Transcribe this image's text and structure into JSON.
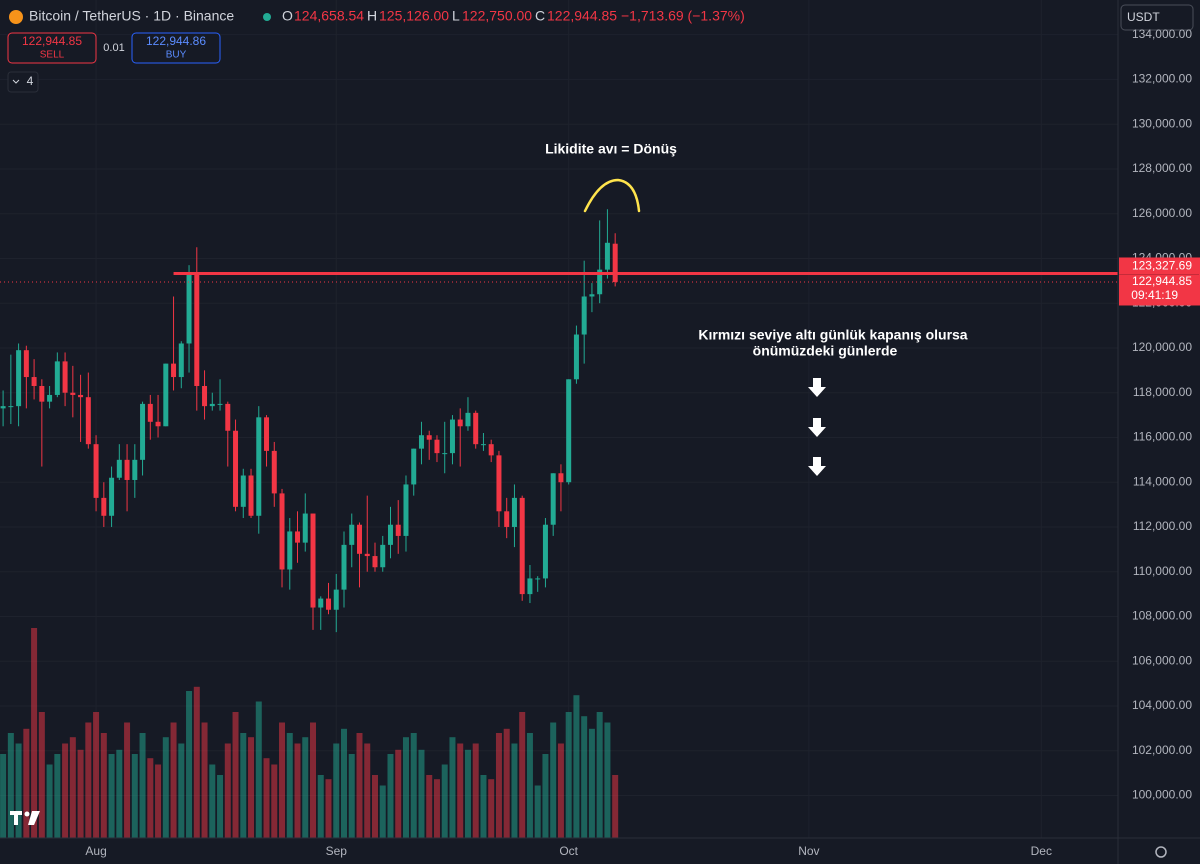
{
  "header": {
    "symbol": "Bitcoin / TetherUS · 1D · Binance",
    "ohlc": [
      {
        "label": "O",
        "value": "124,658.54"
      },
      {
        "label": "H",
        "value": "125,126.00"
      },
      {
        "label": "L",
        "value": "122,750.00"
      },
      {
        "label": "C",
        "value": "122,944.85"
      }
    ],
    "change": "−1,713.69 (−1.37%)"
  },
  "trade": {
    "sell_price": "122,944.85",
    "sell_label": "SELL",
    "spread": "0.01",
    "buy_price": "122,944.86",
    "buy_label": "BUY"
  },
  "indicators_count": 4,
  "currency": "USDT",
  "chart_data": {
    "type": "candlestick",
    "up_color": "#22ab94",
    "down_color": "#f23645",
    "xlim": [
      -0.4,
      143.9
    ],
    "xticks": [
      {
        "value": 12,
        "label": "Aug"
      },
      {
        "value": 43,
        "label": "Sep"
      },
      {
        "value": 73,
        "label": "Oct"
      },
      {
        "value": 104,
        "label": "Nov"
      },
      {
        "value": 134,
        "label": "Dec"
      }
    ],
    "ylim": [
      98100,
      135550
    ],
    "yticks": [
      {
        "value": 100000,
        "label": "100,000.00"
      },
      {
        "value": 102000,
        "label": "102,000.00"
      },
      {
        "value": 104000,
        "label": "104,000.00"
      },
      {
        "value": 106000,
        "label": "106,000.00"
      },
      {
        "value": 108000,
        "label": "108,000.00"
      },
      {
        "value": 110000,
        "label": "110,000.00"
      },
      {
        "value": 112000,
        "label": "112,000.00"
      },
      {
        "value": 114000,
        "label": "114,000.00"
      },
      {
        "value": 116000,
        "label": "116,000.00"
      },
      {
        "value": 118000,
        "label": "118,000.00"
      },
      {
        "value": 120000,
        "label": "120,000.00"
      },
      {
        "value": 122000,
        "label": "122,000.00"
      },
      {
        "value": 124000,
        "label": "124,000.00"
      },
      {
        "value": 126000,
        "label": "126,000.00"
      },
      {
        "value": 128000,
        "label": "128,000.00"
      },
      {
        "value": 130000,
        "label": "130,000.00"
      },
      {
        "value": 132000,
        "label": "132,000.00"
      },
      {
        "value": 134000,
        "label": "134,000.00"
      }
    ],
    "grid": true,
    "open": [
      117300,
      117400,
      117400,
      119900,
      118700,
      118300,
      117600,
      117900,
      119400,
      118000,
      117900,
      117800,
      115700,
      113300,
      112500,
      114200,
      115000,
      114100,
      115000,
      117500,
      116700,
      116500,
      119300,
      118700,
      120200,
      123300,
      118300,
      117400,
      117500,
      117500,
      116300,
      112900,
      114300,
      112500,
      116900,
      115400,
      113500,
      110100,
      111800,
      111300,
      112600,
      108400,
      108800,
      108300,
      109200,
      111200,
      112100,
      110800,
      110700,
      110200,
      111200,
      112100,
      111600,
      113900,
      115500,
      116100,
      115900,
      115300,
      115300,
      116800,
      116500,
      117100,
      115700,
      115700,
      115200,
      112700,
      112000,
      113300,
      109000,
      109700,
      109700,
      112100,
      114400,
      114000,
      118600,
      120600,
      122300,
      122400,
      123500,
      124658.54
    ],
    "high": [
      118100,
      119700,
      120200,
      120100,
      119500,
      118600,
      118300,
      119800,
      119800,
      119200,
      118800,
      118900,
      116100,
      114000,
      114700,
      115700,
      115700,
      115700,
      117600,
      117900,
      117900,
      119300,
      122300,
      120300,
      123700,
      124500,
      119000,
      118000,
      118600,
      117600,
      116800,
      114600,
      114600,
      117400,
      117000,
      115800,
      113700,
      112400,
      112700,
      113500,
      112600,
      108900,
      109500,
      109900,
      111800,
      112600,
      112200,
      113400,
      111300,
      111600,
      112900,
      113200,
      114300,
      115500,
      116700,
      116300,
      116100,
      116700,
      117000,
      117300,
      117800,
      117200,
      116200,
      115900,
      115400,
      113300,
      113900,
      113400,
      110300,
      109800,
      112400,
      114400,
      114800,
      118600,
      121000,
      123900,
      122900,
      125700,
      126200,
      125126
    ],
    "low": [
      116500,
      116600,
      116500,
      117300,
      117700,
      114700,
      117300,
      117800,
      117400,
      116900,
      115800,
      115500,
      112700,
      112000,
      112000,
      114100,
      112700,
      113300,
      114300,
      115900,
      116000,
      116500,
      118100,
      118200,
      118900,
      117200,
      116800,
      117200,
      117200,
      114700,
      112700,
      112400,
      112400,
      111700,
      114700,
      112900,
      109300,
      109200,
      110400,
      110900,
      107400,
      107400,
      108100,
      107300,
      108400,
      110200,
      109300,
      110000,
      110000,
      110000,
      110600,
      110800,
      110900,
      113400,
      114800,
      115000,
      114900,
      114400,
      114800,
      114700,
      116300,
      115500,
      115400,
      114900,
      112000,
      111500,
      111100,
      108700,
      108600,
      109100,
      109300,
      111600,
      112700,
      113900,
      118400,
      119300,
      121600,
      122000,
      123100,
      122750
    ],
    "close": [
      117400,
      117400,
      119900,
      118700,
      118300,
      117600,
      117900,
      119400,
      118000,
      117900,
      117800,
      115700,
      113300,
      112500,
      114200,
      115000,
      114100,
      115000,
      117500,
      116700,
      116500,
      119300,
      118700,
      120200,
      123300,
      118300,
      117400,
      117500,
      117500,
      116300,
      112900,
      114300,
      112500,
      116900,
      115400,
      113500,
      110100,
      111800,
      111300,
      112600,
      108400,
      108800,
      108300,
      109200,
      111200,
      112100,
      110800,
      110700,
      110200,
      111200,
      112100,
      111600,
      113900,
      115500,
      116100,
      115900,
      115300,
      115300,
      116800,
      116500,
      117100,
      115700,
      115700,
      115200,
      112700,
      112000,
      113300,
      109000,
      109700,
      109700,
      112100,
      114400,
      114000,
      118600,
      120600,
      122300,
      122400,
      123500,
      124700,
      122944.85
    ],
    "volume": [
      40,
      50,
      45,
      52,
      100,
      60,
      35,
      40,
      45,
      48,
      42,
      55,
      60,
      50,
      40,
      42,
      55,
      40,
      50,
      38,
      35,
      48,
      55,
      45,
      70,
      72,
      55,
      35,
      30,
      45,
      60,
      50,
      48,
      65,
      38,
      35,
      55,
      50,
      45,
      48,
      55,
      30,
      28,
      45,
      52,
      40,
      50,
      45,
      30,
      25,
      40,
      42,
      48,
      50,
      42,
      30,
      28,
      35,
      48,
      45,
      42,
      45,
      30,
      28,
      50,
      52,
      45,
      60,
      50,
      25,
      40,
      55,
      45,
      60,
      68,
      58,
      52,
      60,
      55,
      30
    ],
    "level": {
      "value": 123327.69,
      "label": "123,327.69",
      "from_x": 22,
      "color": "#f23645"
    },
    "last_price": {
      "value": 122944.85,
      "label": "122,944.85",
      "countdown": "09:41:19"
    },
    "annotations": [
      "Likidite avı = Dönüş",
      "Kırmızı seviye altı günlük kapanış olursa",
      "önümüzdeki günlerde"
    ]
  }
}
